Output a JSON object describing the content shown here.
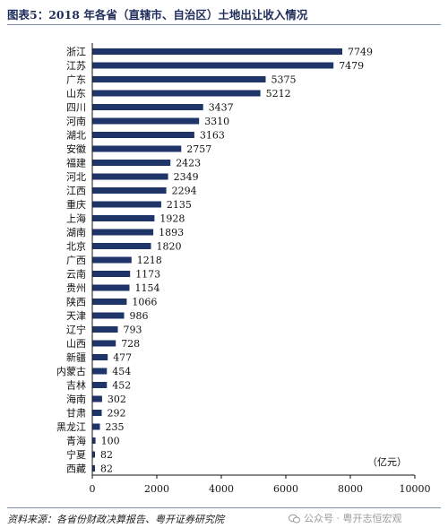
{
  "figure": {
    "title": "图表5：2018 年各省（直辖市、自治区）土地出让收入情况",
    "source": "资料来源：各省份财政决算报告、粤开证券研究院",
    "watermark": "公众号 · 粤开志恒宏观"
  },
  "chart_data": {
    "type": "bar",
    "orientation": "horizontal",
    "categories": [
      "浙江",
      "江苏",
      "广东",
      "山东",
      "四川",
      "河南",
      "湖北",
      "安徽",
      "福建",
      "河北",
      "江西",
      "重庆",
      "上海",
      "湖南",
      "北京",
      "广西",
      "云南",
      "贵州",
      "陕西",
      "天津",
      "辽宁",
      "山西",
      "新疆",
      "内蒙古",
      "吉林",
      "海南",
      "甘肃",
      "黑龙江",
      "青海",
      "宁夏",
      "西藏"
    ],
    "values": [
      7749,
      7479,
      5375,
      5212,
      3437,
      3310,
      3163,
      2757,
      2423,
      2349,
      2294,
      2135,
      1928,
      1893,
      1820,
      1218,
      1173,
      1154,
      1066,
      986,
      793,
      728,
      477,
      454,
      452,
      302,
      292,
      235,
      100,
      82,
      82
    ],
    "xlim": [
      0,
      10000
    ],
    "xticks": [
      0,
      2000,
      4000,
      6000,
      8000,
      10000
    ],
    "unit_label": "（亿元）",
    "bar_color": "#1f3468",
    "grid": false
  }
}
